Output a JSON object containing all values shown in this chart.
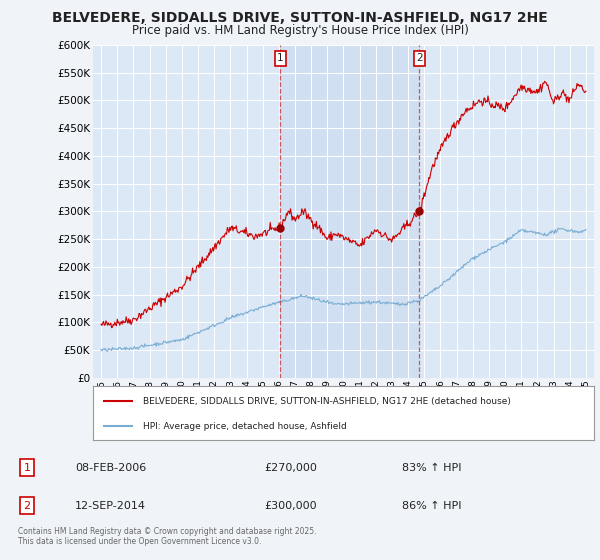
{
  "title": "BELVEDERE, SIDDALLS DRIVE, SUTTON-IN-ASHFIELD, NG17 2HE",
  "subtitle": "Price paid vs. HM Land Registry's House Price Index (HPI)",
  "red_label": "BELVEDERE, SIDDALLS DRIVE, SUTTON-IN-ASHFIELD, NG17 2HE (detached house)",
  "blue_label": "HPI: Average price, detached house, Ashfield",
  "annotation1": {
    "num": "1",
    "date": "08-FEB-2006",
    "price": "£270,000",
    "hpi": "83% ↑ HPI"
  },
  "annotation2": {
    "num": "2",
    "date": "12-SEP-2014",
    "price": "£300,000",
    "hpi": "86% ↑ HPI"
  },
  "footer": "Contains HM Land Registry data © Crown copyright and database right 2025.\nThis data is licensed under the Open Government Licence v3.0.",
  "ylim": [
    0,
    600000
  ],
  "yticks": [
    0,
    50000,
    100000,
    150000,
    200000,
    250000,
    300000,
    350000,
    400000,
    450000,
    500000,
    550000,
    600000
  ],
  "background_color": "#f0f4f8",
  "plot_bg": "#dce8f5",
  "highlight_bg": "#c8dcf0",
  "vline1_x": 2006.1,
  "vline2_x": 2014.7,
  "marker1_red_y": 270000,
  "marker2_red_y": 300000,
  "title_fontsize": 10,
  "subtitle_fontsize": 9,
  "xmin": 1995,
  "xmax": 2025
}
